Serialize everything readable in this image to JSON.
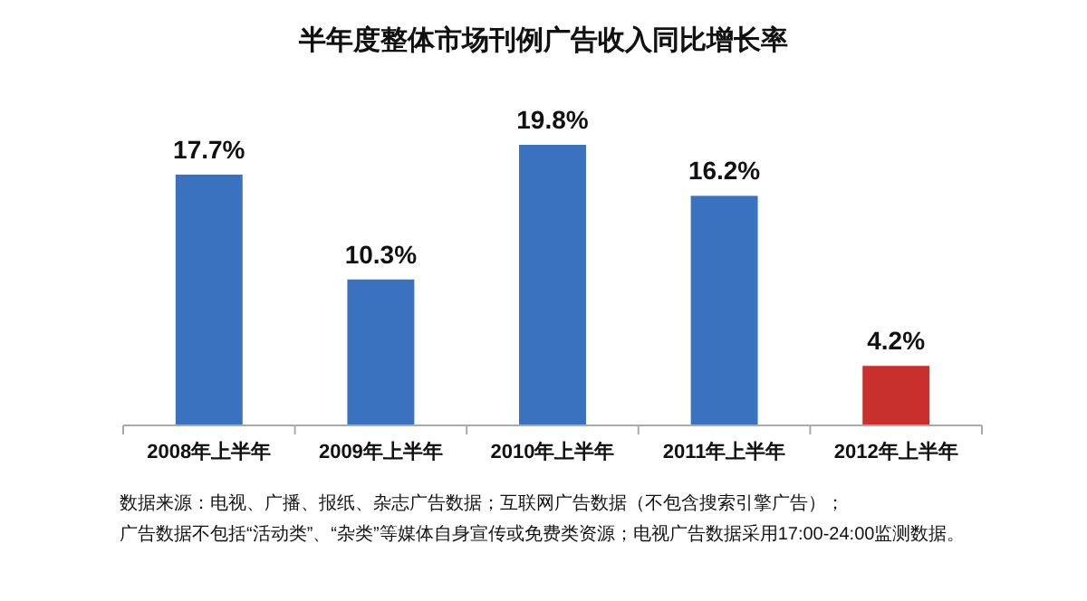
{
  "chart_data": {
    "type": "bar",
    "title": "半年度整体市场刊例广告收入同比增长率",
    "categories": [
      "2008年上半年",
      "2009年上半年",
      "2010年上半年",
      "2011年上半年",
      "2012年上半年"
    ],
    "values": [
      17.7,
      10.3,
      19.8,
      16.2,
      4.2
    ],
    "value_labels": [
      "17.7%",
      "10.3%",
      "19.8%",
      "16.2%",
      "4.2%"
    ],
    "colors": [
      "#3a72c0",
      "#3a72c0",
      "#3a72c0",
      "#3a72c0",
      "#c8302e"
    ],
    "annotations": [
      "数据来源：电视、广播、报纸、杂志广告数据；互联网广告数据（不包含搜索引擎广告）；",
      "广告数据不包括“活动类”、“杂类”等媒体自身宣传或免费类资源；电视广告数据采用17:00-24:00监测数据。"
    ]
  }
}
